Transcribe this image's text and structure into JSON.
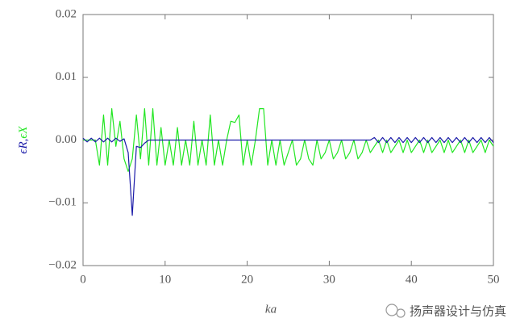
{
  "chart_data": {
    "type": "line",
    "xlabel": "ka",
    "ylabel_separator": ",",
    "watermark": "扬声器设计与仿真",
    "x": [
      0,
      0.5,
      1,
      1.5,
      2,
      2.5,
      3,
      3.5,
      4,
      4.5,
      5,
      5.5,
      6,
      6.5,
      7,
      7.5,
      8,
      8.5,
      9,
      9.5,
      10,
      10.5,
      11,
      11.5,
      12,
      12.5,
      13,
      13.5,
      14,
      14.5,
      15,
      15.5,
      16,
      16.5,
      17,
      17.5,
      18,
      18.5,
      19,
      19.5,
      20,
      20.5,
      21,
      21.5,
      22,
      22.5,
      23,
      23.5,
      24,
      24.5,
      25,
      25.5,
      26,
      26.5,
      27,
      27.5,
      28,
      28.5,
      29,
      29.5,
      30,
      30.5,
      31,
      31.5,
      32,
      32.5,
      33,
      33.5,
      34,
      34.5,
      35,
      35.5,
      36,
      36.5,
      37,
      37.5,
      38,
      38.5,
      39,
      39.5,
      40,
      40.5,
      41,
      41.5,
      42,
      42.5,
      43,
      43.5,
      44,
      44.5,
      45,
      45.5,
      46,
      46.5,
      47,
      47.5,
      48,
      48.5,
      49,
      49.5,
      50
    ],
    "series": [
      {
        "name": "ϵX",
        "color": "#22e622",
        "values": [
          0,
          0,
          0,
          0,
          -0.004,
          0.004,
          -0.004,
          0.005,
          -0.001,
          0.003,
          -0.003,
          -0.005,
          -0.003,
          0.004,
          -0.003,
          0.005,
          -0.004,
          0.005,
          -0.004,
          0.002,
          -0.004,
          0,
          -0.004,
          0.002,
          -0.004,
          0,
          -0.004,
          0.003,
          -0.004,
          0,
          -0.004,
          0.004,
          -0.004,
          0,
          -0.004,
          0,
          0.003,
          0.0028,
          0.004,
          -0.004,
          0,
          -0.004,
          0,
          0.005,
          0.005,
          -0.004,
          0,
          -0.004,
          0,
          -0.004,
          -0.002,
          0,
          -0.004,
          -0.003,
          0,
          -0.003,
          -0.004,
          0,
          -0.003,
          -0.002,
          0,
          -0.003,
          -0.002,
          0,
          -0.003,
          -0.002,
          0,
          -0.003,
          -0.002,
          0,
          -0.002,
          -0.001,
          0,
          -0.002,
          0,
          -0.002,
          -0.001,
          0,
          -0.002,
          0,
          -0.002,
          -0.001,
          0,
          -0.002,
          0,
          -0.002,
          -0.001,
          0,
          -0.002,
          0,
          -0.002,
          -0.001,
          0,
          -0.002,
          0,
          -0.002,
          -0.001,
          0,
          -0.002,
          0,
          -0.001
        ]
      },
      {
        "name": "ϵR",
        "color": "#1a1aa8",
        "values": [
          0.0003,
          -0.0003,
          0.0003,
          -0.0003,
          0.0003,
          -0.0003,
          0.0003,
          -0.0003,
          0.0003,
          -0.0002,
          0.0002,
          -0.002,
          -0.012,
          -0.001,
          -0.0012,
          -0.0005,
          0,
          0,
          0,
          0,
          0,
          0,
          0,
          0,
          0,
          0,
          0,
          0,
          0,
          0,
          0,
          0,
          0,
          0,
          0,
          0,
          0,
          0,
          0,
          0,
          0,
          0,
          0,
          0,
          0,
          0,
          0,
          0,
          0,
          0,
          0,
          0,
          0,
          0,
          0,
          0,
          0,
          0,
          0,
          0,
          0,
          0,
          0,
          0,
          0,
          0,
          0,
          0,
          0,
          0,
          0,
          0.0004,
          -0.0004,
          0.0004,
          -0.0004,
          0.0004,
          -0.0004,
          0.0004,
          -0.0004,
          0.0004,
          -0.0004,
          0.0004,
          -0.0004,
          0.0004,
          -0.0004,
          0.0004,
          -0.0004,
          0.0004,
          -0.0004,
          0.0004,
          -0.0004,
          0.0004,
          -0.0004,
          0.0004,
          -0.0004,
          0.0004,
          -0.0004,
          0.0004,
          -0.0004,
          0.0004,
          -0.0004
        ]
      }
    ],
    "xlim": [
      0,
      50
    ],
    "ylim": [
      -0.02,
      0.02
    ],
    "xticks": [
      0,
      10,
      20,
      30,
      40,
      50
    ],
    "yticks": [
      {
        "value": -0.02,
        "label": "−0.02"
      },
      {
        "value": -0.01,
        "label": "−0.01"
      },
      {
        "value": 0,
        "label": "0.00"
      },
      0.01,
      0.02
    ]
  }
}
